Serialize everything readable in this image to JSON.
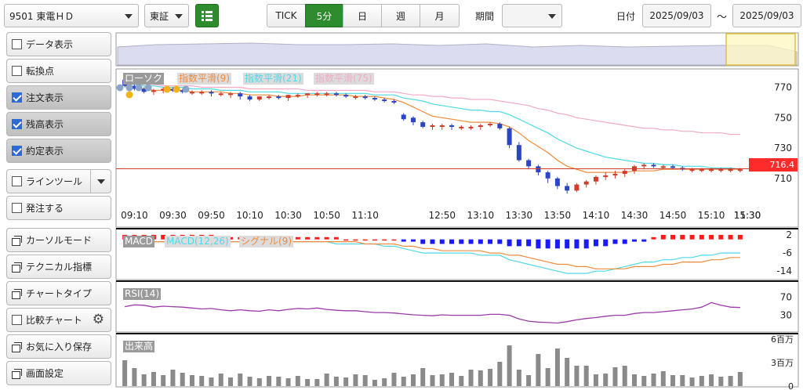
{
  "toolbar": {
    "symbol": "9501 東電ＨＤ",
    "market": "東証",
    "tabs": [
      "TICK",
      "5分",
      "日",
      "週",
      "月"
    ],
    "active_tab": "5分",
    "period_label": "期間",
    "period_value": "",
    "date_label": "日付",
    "date_from": "2025/09/03",
    "date_sep": "～",
    "date_to": "2025/09/03"
  },
  "sidebar": {
    "items": [
      {
        "label": "データ表示",
        "type": "checkbox",
        "checked": false
      },
      {
        "label": "転換点",
        "type": "checkbox",
        "checked": false
      },
      {
        "label": "注文表示",
        "type": "checkbox",
        "checked": true
      },
      {
        "label": "残高表示",
        "type": "checkbox",
        "checked": true
      },
      {
        "label": "約定表示",
        "type": "checkbox",
        "checked": true
      },
      {
        "label": "ラインツール",
        "type": "checkbox",
        "checked": false
      },
      {
        "label": "発注する",
        "type": "checkbox",
        "checked": false
      },
      {
        "label": "カーソルモード",
        "type": "window"
      },
      {
        "label": "テクニカル指標",
        "type": "window"
      },
      {
        "label": "チャートタイプ",
        "type": "window"
      },
      {
        "label": "比較チャート",
        "type": "checkbox",
        "checked": false
      },
      {
        "label": "お気に入り保存",
        "type": "window"
      },
      {
        "label": "画面設定",
        "type": "window"
      }
    ]
  },
  "chart": {
    "legend": {
      "candle": "ローソク",
      "ema9": "指数平滑(9)",
      "ema21": "指数平滑(21)",
      "ema75": "指数平滑(75)"
    },
    "price_label": "716.4",
    "macd_legend": {
      "macd": "MACD",
      "line": "MACD(12,26)",
      "signal": "シグナル(9)"
    },
    "rsi_legend": "RSI(14)",
    "vol_legend": "出来高",
    "colors": {
      "up": "#d03c2c",
      "down": "#2b45c4",
      "ema9": "#f08a3a",
      "ema21": "#4fd9e6",
      "ema75": "#f3a9c7",
      "rsi": "#9b3aa8",
      "volume": "#8a8a8a",
      "price_line": "#d03c2c"
    }
  },
  "chart_data": [
    {
      "type": "candlestick",
      "x": [
        "09:05",
        "09:10",
        "09:15",
        "09:20",
        "09:25",
        "09:30",
        "09:35",
        "09:40",
        "09:45",
        "09:50",
        "09:55",
        "10:00",
        "10:05",
        "10:10",
        "10:15",
        "10:20",
        "10:25",
        "10:30",
        "10:35",
        "10:40",
        "10:45",
        "10:50",
        "10:55",
        "11:00",
        "11:05",
        "11:10",
        "11:15",
        "11:20",
        "11:25",
        "12:30",
        "12:35",
        "12:40",
        "12:45",
        "12:50",
        "12:55",
        "13:00",
        "13:05",
        "13:10",
        "13:15",
        "13:20",
        "13:25",
        "13:30",
        "13:35",
        "13:40",
        "13:45",
        "13:50",
        "13:55",
        "14:00",
        "14:05",
        "14:10",
        "14:15",
        "14:20",
        "14:25",
        "14:30",
        "14:35",
        "14:40",
        "14:45",
        "14:50",
        "14:55",
        "15:00",
        "15:05",
        "15:10",
        "15:15",
        "15:20",
        "15:25"
      ],
      "x_ticks": [
        "09:10",
        "09:30",
        "09:50",
        "10:10",
        "10:30",
        "10:50",
        "11:10",
        "11:30",
        "12:50",
        "13:10",
        "13:30",
        "13:50",
        "14:10",
        "14:30",
        "14:50",
        "15:10",
        "15:30"
      ],
      "open": [
        775,
        771,
        769,
        767,
        768,
        769,
        768,
        767,
        767,
        767,
        766,
        766,
        766,
        764,
        762,
        764,
        764,
        763,
        765,
        765,
        766,
        766,
        766,
        765,
        764,
        764,
        763,
        762,
        761,
        752,
        750,
        747,
        744,
        745,
        745,
        744,
        744,
        744,
        745,
        746,
        743,
        732,
        722,
        718,
        714,
        710,
        705,
        702,
        706,
        708,
        711,
        712,
        713,
        715,
        718,
        719,
        718,
        718,
        717,
        716,
        716,
        716,
        716,
        716,
        716
      ],
      "high": [
        776,
        772,
        770,
        769,
        770,
        770,
        769,
        768,
        768,
        768,
        767,
        767,
        767,
        765,
        764,
        765,
        765,
        765,
        766,
        766,
        767,
        767,
        767,
        766,
        765,
        765,
        764,
        763,
        762,
        753,
        751,
        748,
        746,
        746,
        746,
        745,
        745,
        746,
        747,
        747,
        744,
        734,
        723,
        719,
        715,
        711,
        707,
        707,
        709,
        712,
        714,
        715,
        716,
        719,
        720,
        720,
        719,
        719,
        718,
        717,
        717,
        717,
        717,
        717,
        717
      ],
      "low": [
        770,
        768,
        766,
        765,
        766,
        767,
        766,
        765,
        765,
        764,
        764,
        763,
        762,
        761,
        761,
        762,
        762,
        761,
        763,
        763,
        764,
        764,
        764,
        763,
        762,
        762,
        761,
        760,
        759,
        748,
        745,
        743,
        742,
        742,
        742,
        742,
        742,
        742,
        744,
        742,
        730,
        721,
        716,
        712,
        707,
        703,
        700,
        701,
        704,
        706,
        709,
        710,
        711,
        713,
        716,
        717,
        716,
        716,
        715,
        714,
        714,
        714,
        714,
        714,
        714
      ],
      "close": [
        771,
        769,
        767,
        768,
        769,
        768,
        767,
        767,
        767,
        766,
        766,
        766,
        764,
        762,
        764,
        764,
        763,
        765,
        765,
        766,
        766,
        766,
        765,
        764,
        764,
        763,
        762,
        761,
        760,
        749,
        747,
        744,
        745,
        745,
        744,
        744,
        744,
        745,
        746,
        743,
        732,
        722,
        718,
        714,
        710,
        705,
        702,
        706,
        708,
        711,
        712,
        713,
        715,
        718,
        719,
        718,
        718,
        717,
        716,
        716,
        716,
        716,
        716,
        716,
        716
      ],
      "ema9": [
        771,
        770,
        769,
        768,
        768,
        768,
        768,
        767,
        767,
        767,
        767,
        766,
        766,
        765,
        765,
        765,
        764,
        764,
        764,
        765,
        765,
        765,
        765,
        765,
        764,
        764,
        764,
        763,
        762,
        760,
        757,
        754,
        751,
        750,
        749,
        748,
        747,
        747,
        747,
        746,
        744,
        740,
        735,
        731,
        727,
        722,
        718,
        716,
        714,
        714,
        714,
        714,
        714,
        715,
        715,
        715,
        716,
        716,
        716,
        716,
        716,
        716,
        716,
        716,
        716
      ],
      "ema21": [
        772,
        772,
        771,
        771,
        770,
        770,
        770,
        769,
        769,
        769,
        768,
        768,
        768,
        767,
        767,
        767,
        767,
        766,
        766,
        766,
        766,
        766,
        766,
        766,
        766,
        766,
        765,
        765,
        765,
        763,
        762,
        761,
        759,
        758,
        757,
        756,
        755,
        755,
        754,
        754,
        752,
        749,
        746,
        743,
        740,
        736,
        733,
        730,
        728,
        726,
        724,
        723,
        722,
        721,
        720,
        720,
        719,
        719,
        718,
        718,
        718,
        717,
        717,
        717,
        716
      ],
      "ema75": [
        773,
        772,
        772,
        772,
        771,
        771,
        771,
        771,
        770,
        770,
        770,
        770,
        770,
        769,
        769,
        769,
        769,
        769,
        769,
        768,
        768,
        768,
        768,
        768,
        768,
        768,
        767,
        767,
        767,
        766,
        765,
        765,
        764,
        764,
        763,
        763,
        762,
        762,
        762,
        761,
        760,
        759,
        758,
        756,
        755,
        753,
        752,
        750,
        749,
        748,
        747,
        746,
        745,
        744,
        743,
        743,
        742,
        742,
        741,
        741,
        740,
        740,
        740,
        739,
        739
      ],
      "ylim": [
        696,
        778
      ],
      "y_ticks": [
        770,
        750,
        730,
        710
      ],
      "current_price": 716.4
    },
    {
      "type": "macd",
      "histogram": [
        2,
        2,
        2,
        2,
        2,
        2,
        2,
        2,
        2,
        2,
        1,
        1,
        1,
        1,
        1,
        1,
        1,
        1,
        1,
        1,
        1,
        1,
        1,
        0,
        0,
        0,
        0,
        0,
        0,
        -1,
        -1,
        -2,
        -2,
        -2,
        -2,
        -2,
        -2,
        -2,
        -2,
        -2,
        -3,
        -3,
        -3,
        -4,
        -4,
        -4,
        -4,
        -4,
        -4,
        -3,
        -3,
        -2,
        -2,
        -1,
        -1,
        1,
        2,
        2,
        2,
        2,
        2,
        2,
        2,
        2,
        2
      ],
      "macd": [
        -1,
        -1,
        -1,
        -1,
        -1,
        -1,
        -1,
        -1,
        -1,
        -1,
        -1,
        -1,
        -1,
        -1,
        -1,
        -1,
        -1,
        -1,
        -1,
        -1,
        -1,
        -1,
        -2,
        -2,
        -2,
        -2,
        -2,
        -3,
        -3,
        -4,
        -5,
        -6,
        -6,
        -6,
        -6,
        -6,
        -6,
        -7,
        -7,
        -7,
        -9,
        -10,
        -11,
        -12,
        -13,
        -14,
        -15,
        -15,
        -15,
        -14,
        -14,
        -13,
        -12,
        -11,
        -10,
        -10,
        -9,
        -9,
        -8,
        -8,
        -7,
        -7,
        -6,
        -6,
        -6
      ],
      "signal": [
        -1,
        -1,
        -1,
        -1,
        -1,
        -1,
        -1,
        -1,
        -1,
        -1,
        -1,
        -1,
        -1,
        -1,
        -1,
        -1,
        -1,
        -1,
        -1,
        -1,
        -1,
        -1,
        -1,
        -1,
        -1,
        -2,
        -2,
        -2,
        -2,
        -3,
        -3,
        -4,
        -4,
        -5,
        -5,
        -5,
        -5,
        -5,
        -6,
        -6,
        -7,
        -7,
        -8,
        -9,
        -10,
        -11,
        -11,
        -12,
        -12,
        -13,
        -13,
        -13,
        -13,
        -12,
        -12,
        -12,
        -11,
        -11,
        -10,
        -10,
        -10,
        -9,
        -9,
        -8,
        -8
      ],
      "ylim": [
        -16,
        3
      ],
      "y_ticks": [
        2,
        -6,
        -14
      ]
    },
    {
      "type": "line",
      "name": "RSI(14)",
      "values": [
        49,
        53,
        52,
        48,
        50,
        49,
        48,
        46,
        44,
        45,
        42,
        40,
        42,
        40,
        39,
        42,
        40,
        43,
        45,
        44,
        46,
        43,
        41,
        40,
        40,
        38,
        36,
        36,
        35,
        33,
        31,
        30,
        29,
        31,
        30,
        30,
        30,
        30,
        32,
        32,
        30,
        22,
        17,
        15,
        14,
        13,
        16,
        20,
        23,
        25,
        28,
        30,
        30,
        34,
        36,
        36,
        38,
        40,
        42,
        44,
        48,
        58,
        52,
        48,
        47
      ],
      "ylim": [
        0,
        100
      ],
      "y_ticks": [
        70,
        30
      ]
    },
    {
      "type": "bar",
      "name": "出来高",
      "values": [
        3.3,
        2.3,
        1.5,
        1.8,
        1.4,
        2.1,
        1.7,
        1.4,
        1.3,
        1.1,
        1.6,
        1.1,
        1.6,
        1.2,
        1.0,
        1.3,
        1.2,
        1.0,
        1.3,
        0.9,
        0.9,
        1.6,
        1.2,
        1.1,
        1.5,
        1.4,
        0.8,
        1.0,
        1.7,
        1.2,
        1.5,
        2.3,
        1.4,
        1.5,
        1.7,
        1.3,
        2.1,
        2.0,
        2.2,
        3.1,
        5.2,
        2.1,
        1.4,
        4.1,
        2.3,
        4.8,
        3.6,
        2.6,
        2.6,
        1.5,
        1.6,
        2.4,
        2.6,
        1.5,
        1.3,
        1.6,
        1.9,
        1.4,
        1.4,
        1.1,
        1.3,
        1.5,
        1.2,
        1.3,
        1.8
      ],
      "ylim": [
        0,
        6.5
      ],
      "y_ticks": [
        "6百万",
        "3百万",
        "0"
      ]
    }
  ]
}
